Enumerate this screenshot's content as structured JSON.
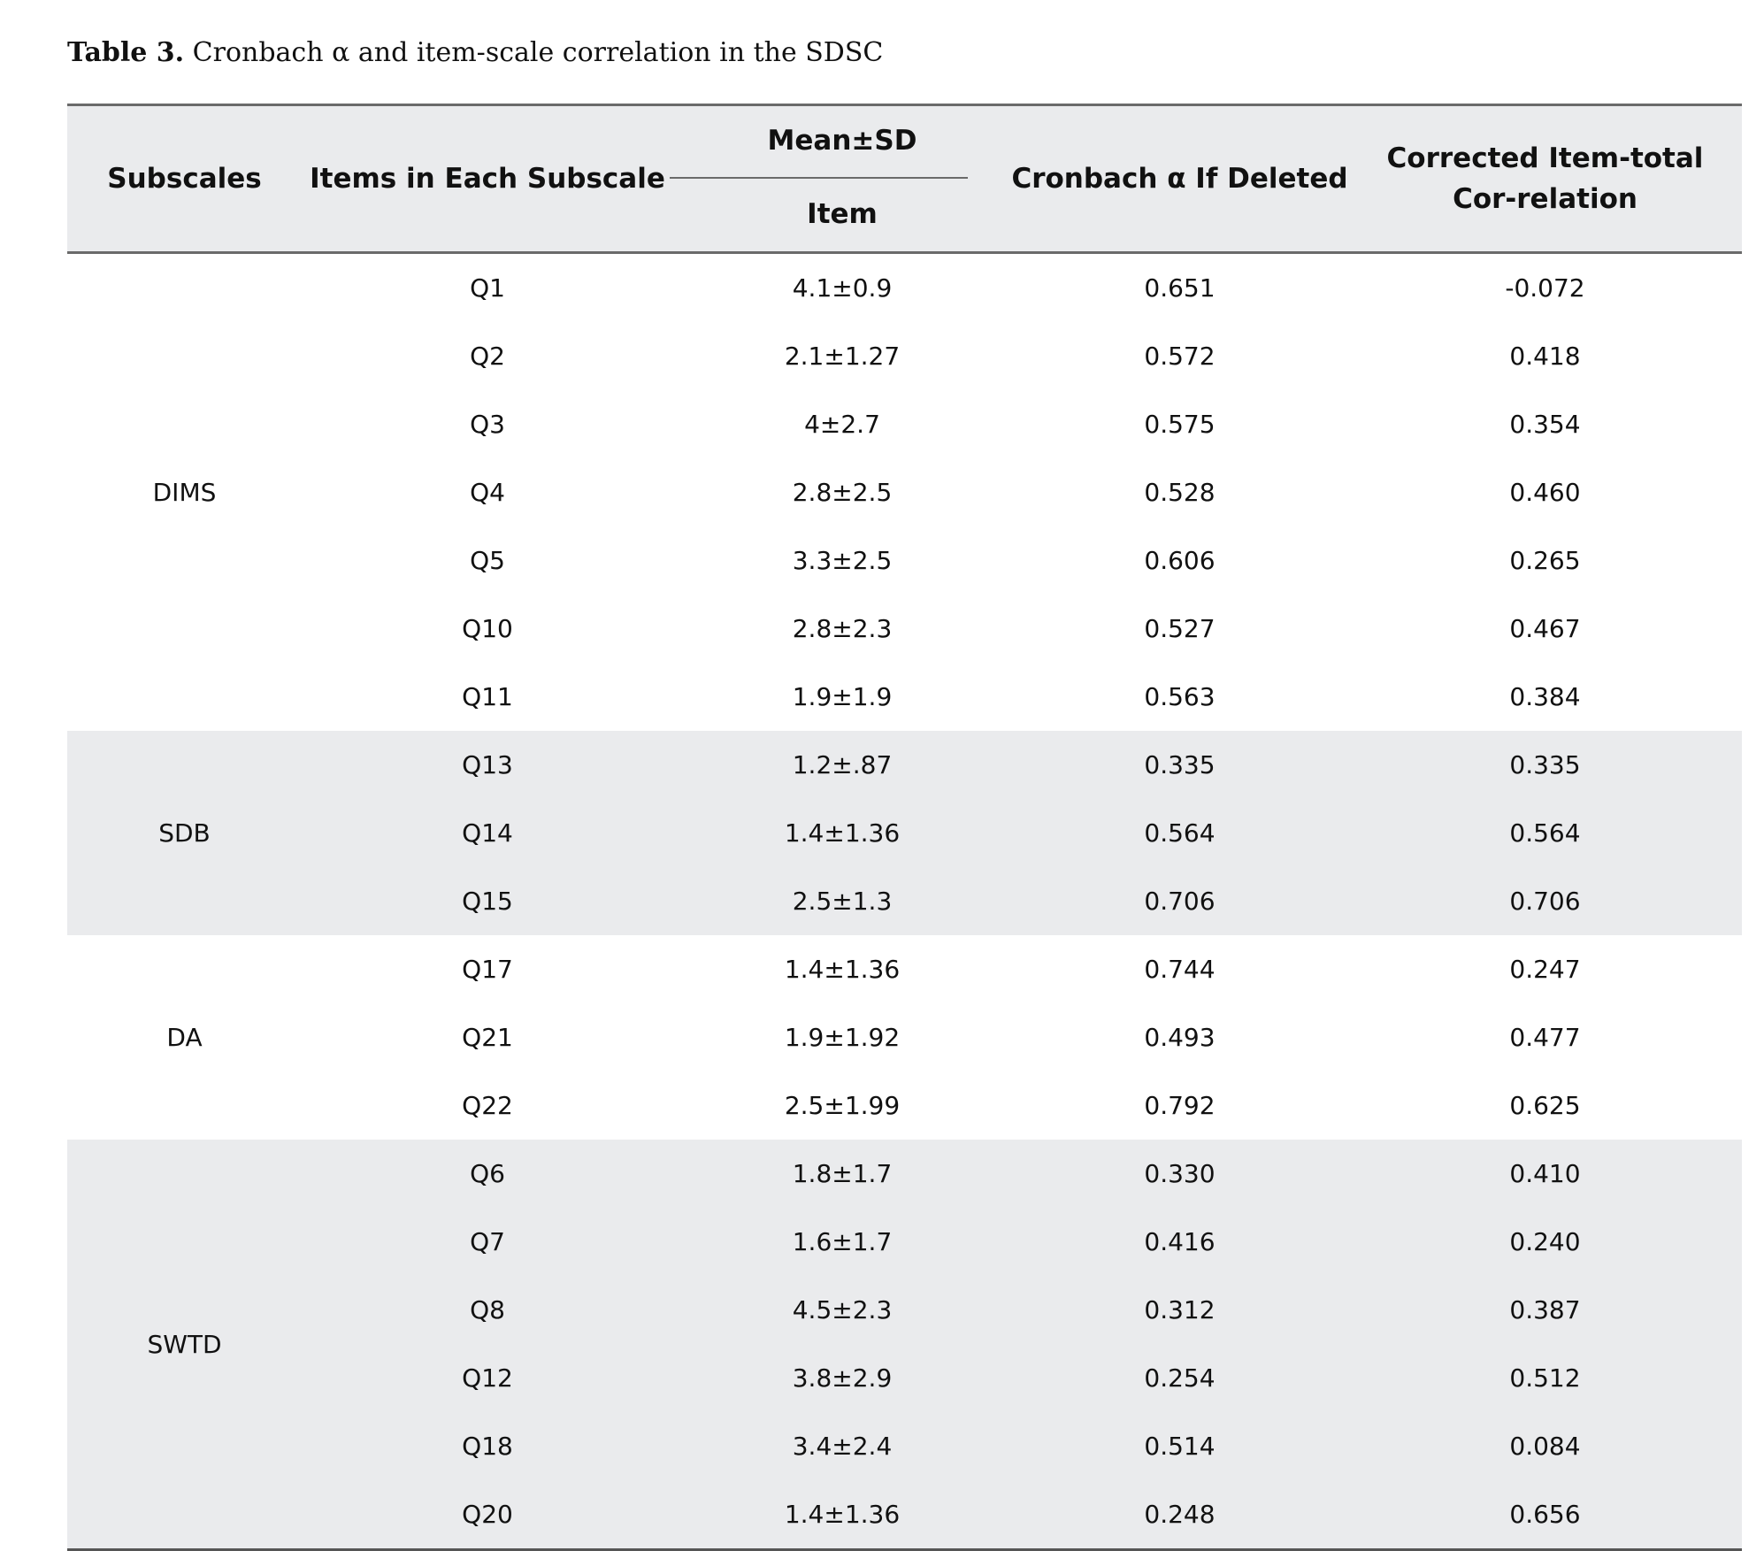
{
  "caption": {
    "label": "Table 3.",
    "text": " Cronbach α and item-scale correlation in the SDSC"
  },
  "headers": {
    "subscales": "Subscales",
    "items": "Items in Each Subscale",
    "mean_sd": "Mean±SD",
    "item": "Item",
    "cronbach": "Cronbach α If Deleted",
    "corrected": "Corrected Item-total Cor-relation"
  },
  "groups": [
    {
      "name": "DIMS",
      "rows": [
        {
          "item": "Q1",
          "mean_sd": "4.1±0.9",
          "alpha": "0.651",
          "corr": "-0.072"
        },
        {
          "item": "Q2",
          "mean_sd": "2.1±1.27",
          "alpha": "0.572",
          "corr": "0.418"
        },
        {
          "item": "Q3",
          "mean_sd": "4±2.7",
          "alpha": "0.575",
          "corr": "0.354"
        },
        {
          "item": "Q4",
          "mean_sd": "2.8±2.5",
          "alpha": "0.528",
          "corr": "0.460"
        },
        {
          "item": "Q5",
          "mean_sd": "3.3±2.5",
          "alpha": "0.606",
          "corr": "0.265"
        },
        {
          "item": "Q10",
          "mean_sd": "2.8±2.3",
          "alpha": "0.527",
          "corr": "0.467"
        },
        {
          "item": "Q11",
          "mean_sd": "1.9±1.9",
          "alpha": "0.563",
          "corr": "0.384"
        }
      ]
    },
    {
      "name": "SDB",
      "rows": [
        {
          "item": "Q13",
          "mean_sd": "1.2±.87",
          "alpha": "0.335",
          "corr": "0.335"
        },
        {
          "item": "Q14",
          "mean_sd": "1.4±1.36",
          "alpha": "0.564",
          "corr": "0.564"
        },
        {
          "item": "Q15",
          "mean_sd": "2.5±1.3",
          "alpha": "0.706",
          "corr": "0.706"
        }
      ]
    },
    {
      "name": "DA",
      "rows": [
        {
          "item": "Q17",
          "mean_sd": "1.4±1.36",
          "alpha": "0.744",
          "corr": "0.247"
        },
        {
          "item": "Q21",
          "mean_sd": "1.9±1.92",
          "alpha": "0.493",
          "corr": "0.477"
        },
        {
          "item": "Q22",
          "mean_sd": "2.5±1.99",
          "alpha": "0.792",
          "corr": "0.625"
        }
      ]
    },
    {
      "name": "SWTD",
      "rows": [
        {
          "item": "Q6",
          "mean_sd": "1.8±1.7",
          "alpha": "0.330",
          "corr": "0.410"
        },
        {
          "item": "Q7",
          "mean_sd": "1.6±1.7",
          "alpha": "0.416",
          "corr": "0.240"
        },
        {
          "item": "Q8",
          "mean_sd": "4.5±2.3",
          "alpha": "0.312",
          "corr": "0.387"
        },
        {
          "item": "Q12",
          "mean_sd": "3.8±2.9",
          "alpha": "0.254",
          "corr": "0.512"
        },
        {
          "item": "Q18",
          "mean_sd": "3.4±2.4",
          "alpha": "0.514",
          "corr": "0.084"
        },
        {
          "item": "Q20",
          "mean_sd": "1.4±1.36",
          "alpha": "0.248",
          "corr": "0.656"
        }
      ]
    }
  ]
}
